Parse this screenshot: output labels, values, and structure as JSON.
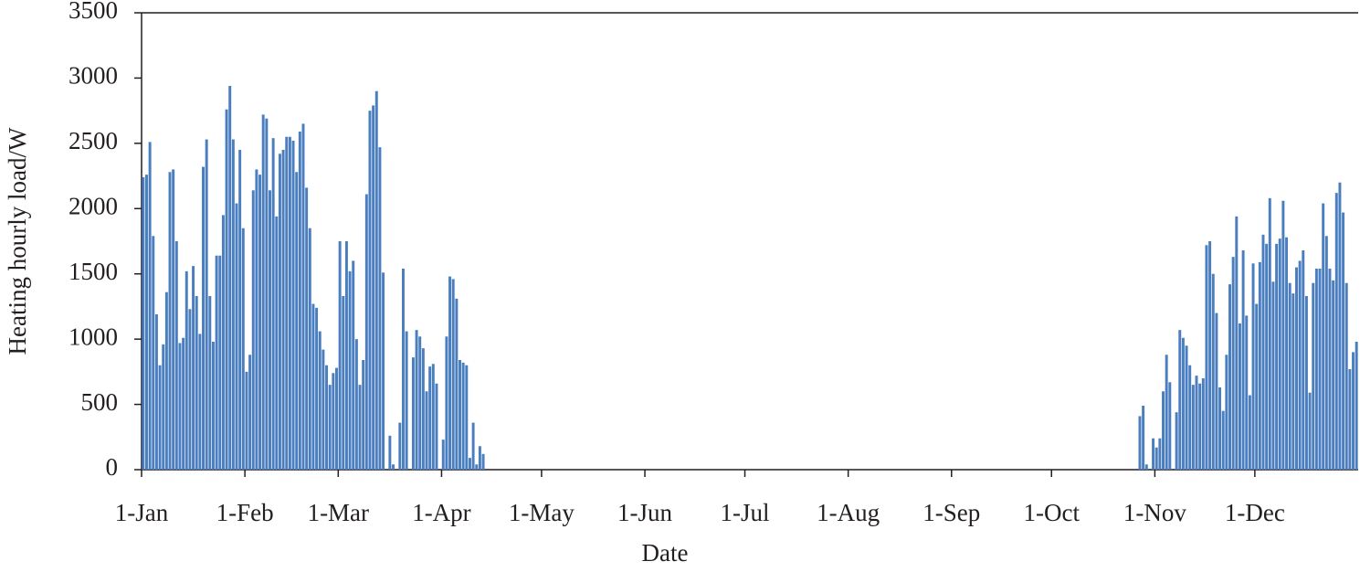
{
  "chart_data": {
    "type": "bar",
    "x_label": "Date",
    "y_label": "Heating hourly load/W",
    "color": "#4a7ebf",
    "ylim": [
      0,
      3500
    ],
    "yticks": [
      0,
      500,
      1000,
      1500,
      2000,
      2500,
      3000,
      3500
    ],
    "categories": [
      "1-Jan",
      null,
      null,
      null,
      null,
      null,
      null,
      null,
      null,
      null,
      null,
      null,
      null,
      null,
      null,
      null,
      null,
      null,
      null,
      null,
      null,
      null,
      null,
      null,
      null,
      null,
      null,
      null,
      null,
      null,
      null,
      "1-Feb",
      null,
      null,
      null,
      null,
      null,
      null,
      null,
      null,
      null,
      null,
      null,
      null,
      null,
      null,
      null,
      null,
      null,
      null,
      null,
      null,
      null,
      null,
      null,
      null,
      null,
      null,
      null,
      "1-Mar",
      null,
      null,
      null,
      null,
      null,
      null,
      null,
      null,
      null,
      null,
      null,
      null,
      null,
      null,
      null,
      null,
      null,
      null,
      null,
      null,
      null,
      null,
      null,
      null,
      null,
      null,
      null,
      null,
      null,
      null,
      "1-Apr",
      null,
      null,
      null,
      null,
      null,
      null,
      null,
      null,
      null,
      null,
      null,
      null,
      null,
      null,
      null,
      null,
      null,
      null,
      null,
      null,
      null,
      null,
      null,
      null,
      null,
      null,
      null,
      null,
      null,
      "1-May",
      null,
      null,
      null,
      null,
      null,
      null,
      null,
      null,
      null,
      null,
      null,
      null,
      null,
      null,
      null,
      null,
      null,
      null,
      null,
      null,
      null,
      null,
      null,
      null,
      null,
      null,
      null,
      null,
      null,
      null,
      "1-Jun",
      null,
      null,
      null,
      null,
      null,
      null,
      null,
      null,
      null,
      null,
      null,
      null,
      null,
      null,
      null,
      null,
      null,
      null,
      null,
      null,
      null,
      null,
      null,
      null,
      null,
      null,
      null,
      null,
      null,
      "1-Jul",
      null,
      null,
      null,
      null,
      null,
      null,
      null,
      null,
      null,
      null,
      null,
      null,
      null,
      null,
      null,
      null,
      null,
      null,
      null,
      null,
      null,
      null,
      null,
      null,
      null,
      null,
      null,
      null,
      null,
      null,
      "1-Aug",
      null,
      null,
      null,
      null,
      null,
      null,
      null,
      null,
      null,
      null,
      null,
      null,
      null,
      null,
      null,
      null,
      null,
      null,
      null,
      null,
      null,
      null,
      null,
      null,
      null,
      null,
      null,
      null,
      null,
      null,
      "1-Sep",
      null,
      null,
      null,
      null,
      null,
      null,
      null,
      null,
      null,
      null,
      null,
      null,
      null,
      null,
      null,
      null,
      null,
      null,
      null,
      null,
      null,
      null,
      null,
      null,
      null,
      null,
      null,
      null,
      null,
      "1-Oct",
      null,
      null,
      null,
      null,
      null,
      null,
      null,
      null,
      null,
      null,
      null,
      null,
      null,
      null,
      null,
      null,
      null,
      null,
      null,
      null,
      null,
      null,
      null,
      null,
      null,
      null,
      null,
      null,
      null,
      null,
      "1-Nov",
      null,
      null,
      null,
      null,
      null,
      null,
      null,
      null,
      null,
      null,
      null,
      null,
      null,
      null,
      null,
      null,
      null,
      null,
      null,
      null,
      null,
      null,
      null,
      null,
      null,
      null,
      null,
      null,
      null,
      "1-Dec",
      null,
      null,
      null,
      null,
      null,
      null,
      null,
      null,
      null,
      null,
      null,
      null,
      null,
      null,
      null,
      null,
      null,
      null,
      null,
      null,
      null,
      null,
      null,
      null,
      null,
      null,
      null,
      null,
      null,
      null
    ],
    "values": [
      2240,
      2260,
      2510,
      1790,
      1190,
      800,
      960,
      1360,
      2280,
      2300,
      1750,
      970,
      1010,
      1520,
      1230,
      1560,
      1330,
      1040,
      2320,
      2530,
      1330,
      980,
      1640,
      1640,
      1950,
      2760,
      2940,
      2530,
      2040,
      2450,
      1850,
      750,
      880,
      2140,
      2300,
      2260,
      2720,
      2690,
      2140,
      2540,
      1940,
      2420,
      2450,
      2550,
      2550,
      2520,
      2280,
      2590,
      2650,
      2160,
      1850,
      1270,
      1240,
      1060,
      920,
      800,
      650,
      740,
      780,
      1750,
      1330,
      1750,
      1520,
      1600,
      1000,
      650,
      840,
      2110,
      2750,
      2790,
      2900,
      2470,
      1510,
      0,
      260,
      40,
      0,
      360,
      1540,
      1060,
      0,
      860,
      1070,
      1020,
      930,
      600,
      790,
      810,
      660,
      0,
      230,
      1020,
      1480,
      1460,
      1310,
      840,
      820,
      800,
      90,
      360,
      40,
      180,
      120,
      0,
      0,
      0,
      0,
      0,
      0,
      0,
      0,
      0,
      0,
      0,
      0,
      0,
      0,
      0,
      0,
      0,
      0,
      0,
      0,
      0,
      0,
      0,
      0,
      0,
      0,
      0,
      0,
      0,
      0,
      0,
      0,
      0,
      0,
      0,
      0,
      0,
      0,
      0,
      0,
      0,
      0,
      0,
      0,
      0,
      0,
      0,
      0,
      0,
      0,
      0,
      0,
      0,
      0,
      0,
      0,
      0,
      0,
      0,
      0,
      0,
      0,
      0,
      0,
      0,
      0,
      0,
      0,
      0,
      0,
      0,
      0,
      0,
      0,
      0,
      0,
      0,
      0,
      0,
      0,
      0,
      0,
      0,
      0,
      0,
      0,
      0,
      0,
      0,
      0,
      0,
      0,
      0,
      0,
      0,
      0,
      0,
      0,
      0,
      0,
      0,
      0,
      0,
      0,
      0,
      0,
      0,
      0,
      0,
      0,
      0,
      0,
      0,
      0,
      0,
      0,
      0,
      0,
      0,
      0,
      0,
      0,
      0,
      0,
      0,
      0,
      0,
      0,
      0,
      0,
      0,
      0,
      0,
      0,
      0,
      0,
      0,
      0,
      0,
      0,
      0,
      0,
      0,
      0,
      0,
      0,
      0,
      0,
      0,
      0,
      0,
      0,
      0,
      0,
      0,
      0,
      0,
      0,
      0,
      0,
      0,
      0,
      0,
      0,
      0,
      0,
      0,
      0,
      0,
      0,
      0,
      0,
      0,
      0,
      0,
      0,
      0,
      0,
      0,
      0,
      0,
      0,
      0,
      0,
      0,
      0,
      0,
      0,
      0,
      0,
      0,
      0,
      0,
      0,
      0,
      0,
      410,
      490,
      40,
      0,
      240,
      170,
      240,
      600,
      880,
      670,
      0,
      440,
      1070,
      1010,
      950,
      800,
      650,
      720,
      660,
      700,
      1720,
      1750,
      1500,
      1200,
      630,
      450,
      880,
      1420,
      1630,
      1940,
      1120,
      1680,
      1180,
      570,
      1580,
      1270,
      1590,
      1800,
      1730,
      2080,
      1440,
      1730,
      1770,
      2060,
      1780,
      1430,
      1350,
      1550,
      1600,
      1680,
      1330,
      590,
      1430,
      1540,
      1540,
      2040,
      1790,
      1540,
      1450,
      2120,
      2200,
      1970,
      1430,
      770,
      900,
      980
    ]
  }
}
